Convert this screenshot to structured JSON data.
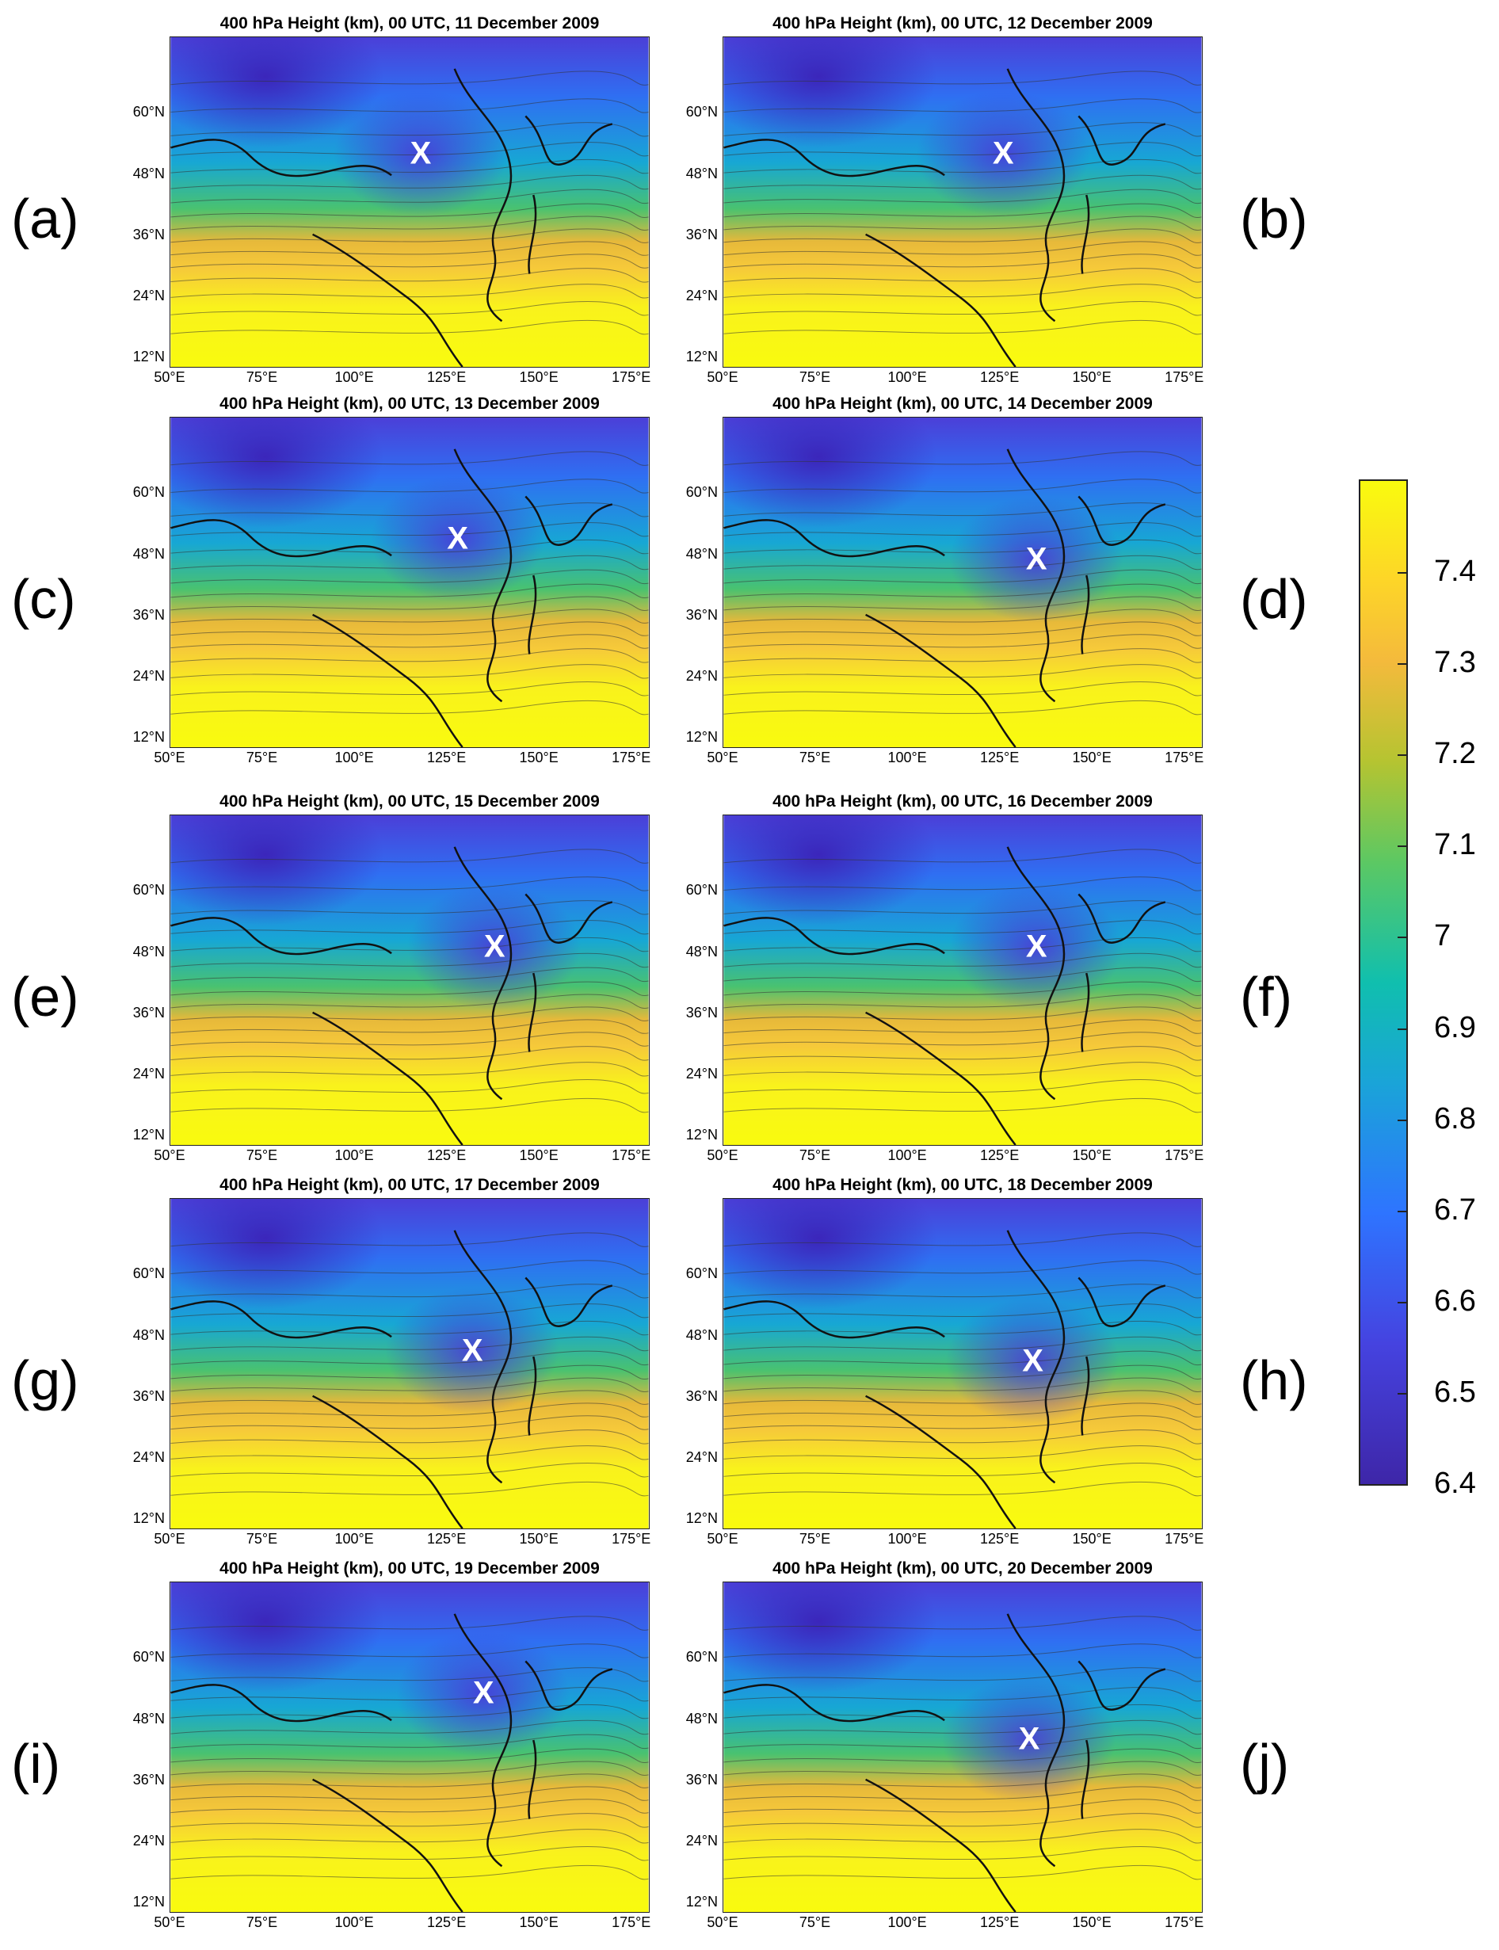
{
  "figure": {
    "panels": [
      {
        "id": "a",
        "label": "(a)",
        "title": "400 hPa Height (km), 00 UTC, 11 December 2009",
        "marker": "X",
        "marker_lonlat": [
          118,
          52
        ]
      },
      {
        "id": "b",
        "label": "(b)",
        "title": "400 hPa Height (km), 00 UTC, 12 December 2009",
        "marker": "X",
        "marker_lonlat": [
          126,
          52
        ]
      },
      {
        "id": "c",
        "label": "(c)",
        "title": "400 hPa Height (km), 00 UTC, 13 December 2009",
        "marker": "X",
        "marker_lonlat": [
          128,
          51
        ]
      },
      {
        "id": "d",
        "label": "(d)",
        "title": "400 hPa Height (km), 00 UTC, 14 December 2009",
        "marker": "X",
        "marker_lonlat": [
          135,
          47
        ]
      },
      {
        "id": "e",
        "label": "(e)",
        "title": "400 hPa Height (km), 00 UTC, 15 December 2009",
        "marker": "X",
        "marker_lonlat": [
          138,
          49
        ]
      },
      {
        "id": "f",
        "label": "(f)",
        "title": "400 hPa Height (km), 00 UTC, 16 December 2009",
        "marker": "X",
        "marker_lonlat": [
          135,
          49
        ]
      },
      {
        "id": "g",
        "label": "(g)",
        "title": "400 hPa Height (km), 00 UTC, 17 December 2009",
        "marker": "X",
        "marker_lonlat": [
          132,
          45
        ]
      },
      {
        "id": "h",
        "label": "(h)",
        "title": "400 hPa Height (km), 00 UTC, 18 December 2009",
        "marker": "X",
        "marker_lonlat": [
          134,
          43
        ]
      },
      {
        "id": "i",
        "label": "(i)",
        "title": "400 hPa Height (km), 00 UTC, 19 December 2009",
        "marker": "X",
        "marker_lonlat": [
          135,
          53
        ]
      },
      {
        "id": "j",
        "label": "(j)",
        "title": "400 hPa Height (km), 00 UTC, 20 December 2009",
        "marker": "X",
        "marker_lonlat": [
          133,
          44
        ]
      }
    ],
    "lat_ticks": [
      "60°N",
      "48°N",
      "36°N",
      "24°N",
      "12°N"
    ],
    "lon_ticks": [
      "50°E",
      "75°E",
      "100°E",
      "125°E",
      "150°E",
      "175°E"
    ],
    "lat_values": [
      60,
      48,
      36,
      24,
      12
    ],
    "lon_values": [
      50,
      75,
      100,
      125,
      150,
      175
    ],
    "extent": {
      "lon": [
        50,
        180
      ],
      "lat": [
        10,
        75
      ]
    },
    "colorbar": {
      "ticks": [
        "7.4",
        "7.3",
        "7.2",
        "7.1",
        "7",
        "6.9",
        "6.8",
        "6.7",
        "6.6",
        "6.5",
        "6.4"
      ],
      "tick_values": [
        7.4,
        7.3,
        7.2,
        7.1,
        7.0,
        6.9,
        6.8,
        6.7,
        6.6,
        6.5,
        6.4
      ],
      "range": [
        6.4,
        7.5
      ],
      "colors": [
        "#3e26a8",
        "#4543e0",
        "#2e74ff",
        "#1aa4d8",
        "#10bfae",
        "#5cc863",
        "#b5c431",
        "#f4ba3c",
        "#fdd528",
        "#f9fb0e"
      ]
    }
  }
}
